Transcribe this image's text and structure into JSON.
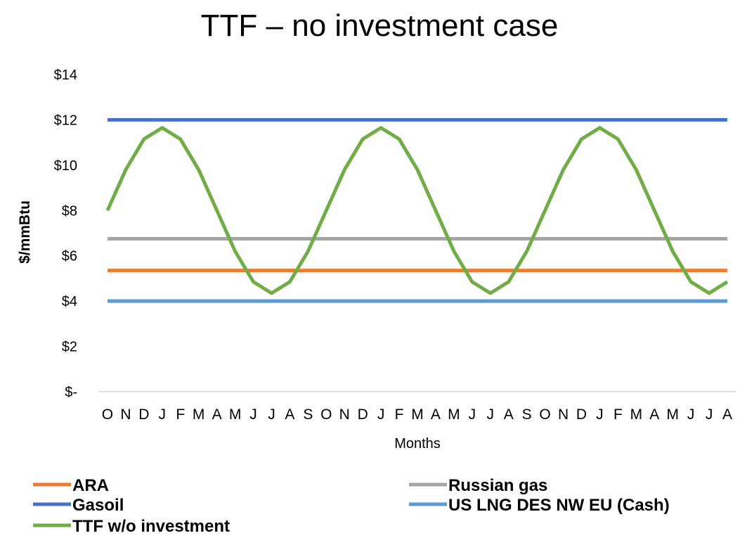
{
  "chart_data": {
    "type": "line",
    "title": "TTF – no investment case",
    "xlabel": "Months",
    "ylabel": "$/mmBtu",
    "ylim": [
      0,
      14
    ],
    "y_ticks": [
      {
        "value": 0,
        "label": "$-"
      },
      {
        "value": 2,
        "label": "$2"
      },
      {
        "value": 4,
        "label": "$4"
      },
      {
        "value": 6,
        "label": "$6"
      },
      {
        "value": 8,
        "label": "$8"
      },
      {
        "value": 10,
        "label": "$10"
      },
      {
        "value": 12,
        "label": "$12"
      },
      {
        "value": 14,
        "label": "$14"
      }
    ],
    "grid": false,
    "legend_position": "bottom",
    "categories": [
      "O",
      "N",
      "D",
      "J",
      "F",
      "M",
      "A",
      "M",
      "J",
      "J",
      "A",
      "S",
      "O",
      "N",
      "D",
      "J",
      "F",
      "M",
      "A",
      "M",
      "J",
      "J",
      "A",
      "S",
      "O",
      "N",
      "D",
      "J",
      "F",
      "M",
      "A",
      "M",
      "J",
      "J",
      "A"
    ],
    "series": [
      {
        "name": "ARA",
        "color": "#ED7D31",
        "values": [
          5.35,
          5.35,
          5.35,
          5.35,
          5.35,
          5.35,
          5.35,
          5.35,
          5.35,
          5.35,
          5.35,
          5.35,
          5.35,
          5.35,
          5.35,
          5.35,
          5.35,
          5.35,
          5.35,
          5.35,
          5.35,
          5.35,
          5.35,
          5.35,
          5.35,
          5.35,
          5.35,
          5.35,
          5.35,
          5.35,
          5.35,
          5.35,
          5.35,
          5.35,
          5.35
        ]
      },
      {
        "name": "Gasoil",
        "color": "#4472C4",
        "values": [
          12,
          12,
          12,
          12,
          12,
          12,
          12,
          12,
          12,
          12,
          12,
          12,
          12,
          12,
          12,
          12,
          12,
          12,
          12,
          12,
          12,
          12,
          12,
          12,
          12,
          12,
          12,
          12,
          12,
          12,
          12,
          12,
          12,
          12,
          12
        ]
      },
      {
        "name": "TTF w/o investment",
        "color": "#70AD47",
        "values": [
          8.0,
          9.8,
          11.15,
          11.65,
          11.15,
          9.8,
          8.0,
          6.2,
          4.85,
          4.35,
          4.85,
          6.2,
          8.0,
          9.8,
          11.15,
          11.65,
          11.15,
          9.8,
          8.0,
          6.2,
          4.85,
          4.35,
          4.85,
          6.2,
          8.0,
          9.8,
          11.15,
          11.65,
          11.15,
          9.8,
          8.0,
          6.2,
          4.85,
          4.35,
          4.85
        ]
      },
      {
        "name": "Russian gas",
        "color": "#A5A5A5",
        "values": [
          6.75,
          6.75,
          6.75,
          6.75,
          6.75,
          6.75,
          6.75,
          6.75,
          6.75,
          6.75,
          6.75,
          6.75,
          6.75,
          6.75,
          6.75,
          6.75,
          6.75,
          6.75,
          6.75,
          6.75,
          6.75,
          6.75,
          6.75,
          6.75,
          6.75,
          6.75,
          6.75,
          6.75,
          6.75,
          6.75,
          6.75,
          6.75,
          6.75,
          6.75,
          6.75
        ]
      },
      {
        "name": "US LNG DES NW EU (Cash)",
        "color": "#5B9BD5",
        "values": [
          4,
          4,
          4,
          4,
          4,
          4,
          4,
          4,
          4,
          4,
          4,
          4,
          4,
          4,
          4,
          4,
          4,
          4,
          4,
          4,
          4,
          4,
          4,
          4,
          4,
          4,
          4,
          4,
          4,
          4,
          4,
          4,
          4,
          4,
          4
        ]
      }
    ],
    "draw_order": [
      "US LNG DES NW EU (Cash)",
      "ARA",
      "Russian gas",
      "Gasoil",
      "TTF w/o investment"
    ],
    "legend_order": [
      "ARA",
      "Gasoil",
      "TTF w/o investment",
      "Russian gas",
      "US LNG DES NW EU (Cash)"
    ]
  },
  "colors": {
    "axis": "#D9D9D9",
    "text": "#000000",
    "background": "#FFFFFF"
  }
}
